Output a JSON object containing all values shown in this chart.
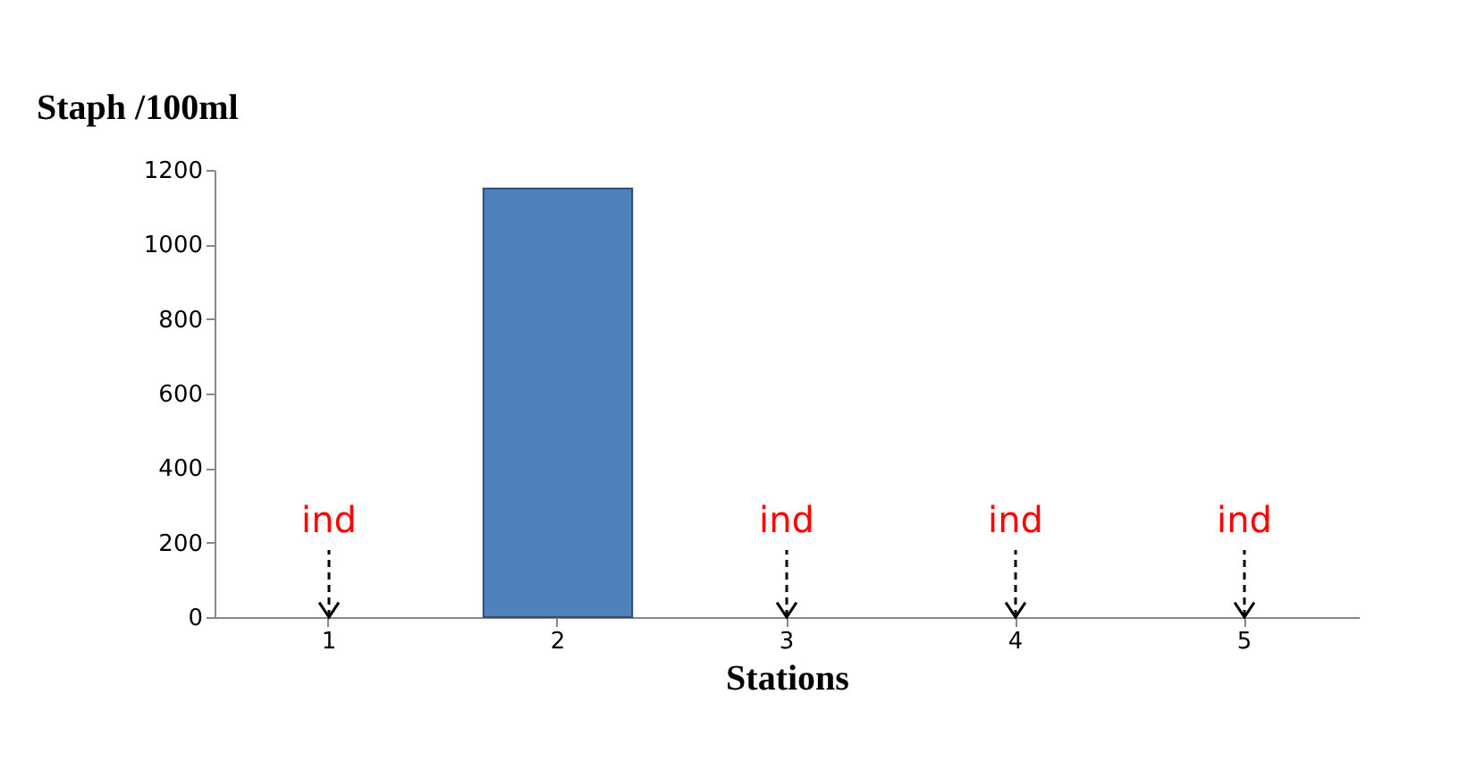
{
  "chart_data": {
    "type": "bar",
    "ylabel": "Staph /100ml",
    "xlabel": "Stations",
    "categories": [
      "1",
      "2",
      "3",
      "4",
      "5"
    ],
    "values": [
      null,
      1150,
      null,
      null,
      null
    ],
    "color": "#4f81bd",
    "ylim": [
      0,
      1200
    ],
    "yticks": [
      0,
      200,
      400,
      600,
      800,
      1000,
      1200
    ],
    "grid": false,
    "annotations": [
      "ind",
      "ind",
      "ind",
      "ind"
    ]
  }
}
